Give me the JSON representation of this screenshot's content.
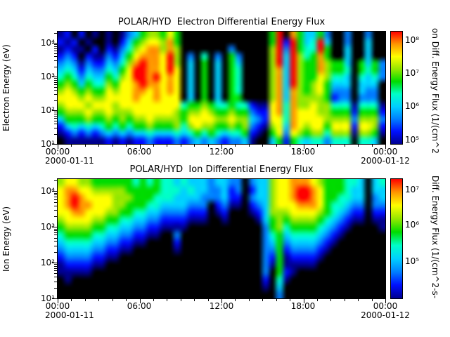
{
  "figure": {
    "panels": [
      {
        "title": "POLAR/HYD  Electron Differential Energy Flux",
        "ylabel": "Electron Energy (eV)",
        "yticks": [
          "10⁴",
          "10³",
          "10²",
          "10¹"
        ],
        "xticks": [
          "00:00",
          "06:00",
          "12:00",
          "18:00",
          "00:00"
        ],
        "date_left": "2000-01-11",
        "date_right": "2000-01-12",
        "cbticks": [
          "10⁸",
          "10⁷",
          "10⁶",
          "10⁵"
        ],
        "cblabel": "on Diff. Energy Flux (1/(cm^2"
      },
      {
        "title": "POLAR/HYD  Ion Differential Energy Flux",
        "ylabel": "Ion Energy (eV)",
        "yticks": [
          "10⁴",
          "10³",
          "10²",
          "10¹"
        ],
        "xticks": [
          "00:00",
          "06:00",
          "12:00",
          "18:00",
          "00:00"
        ],
        "date_left": "2000-01-11",
        "date_right": "2000-01-12",
        "cbticks": [
          "10⁷",
          "10⁶",
          "10⁵"
        ],
        "cblabel": "Diff. Energy Flux (1/(cm^2-s-"
      }
    ]
  },
  "colormap": [
    "#000000",
    "#000090",
    "#0010ff",
    "#0080ff",
    "#00d0ff",
    "#00ffc8",
    "#00dc00",
    "#96e800",
    "#ffff00",
    "#ff9600",
    "#ff0000"
  ],
  "chart_data": [
    {
      "type": "heatmap",
      "title": "POLAR/HYD  Electron Differential Energy Flux",
      "x": {
        "start": "2000-01-11 00:00",
        "end": "2000-01-12 00:00",
        "tick_labels": [
          "00:00",
          "06:00",
          "12:00",
          "18:00",
          "00:00"
        ],
        "bins": 48
      },
      "y": {
        "label": "Electron Energy (eV)",
        "scale": "log",
        "min_eV": 10,
        "max_eV": 10000,
        "tick_labels": [
          "10¹",
          "10²",
          "10³",
          "10⁴"
        ],
        "bins": 16
      },
      "z": {
        "colorbar_label_visible": "on Diff. Energy Flux (1/(cm^2",
        "colorbar_tick_labels": [
          "10⁸",
          "10⁷",
          "10⁶",
          "10⁵"
        ],
        "encoding": "hex digit per cell, 0=min(black) to a=max(red)"
      },
      "legend_position": "right-colorbar",
      "grid_rows_top_to_bottom": [
        "12020101013467768600000000000006a096446300300300",
        "21201001024678879600000000000006a2a645a400300400",
        "12110202135789979700000003000007a3a655a600400400",
        "2320211324689998a703050306300007a4a7569600400400",
        "343132243579a998a704060406400007a4a7669766406463",
        "45424335468aa998a80406040650000794a7669766506563",
        "56535446578aa9a8980406040650000794a7668755405453",
        "676465576889a998980406040650000794a7678644404440",
        "787676687889989898040604065000079497678633304330",
        "888787788889889888040604066000079497777623303330",
        "788878887888888888566765565521189597787755515551",
        "677787787778888887677876676632289598887766626662",
        "466676676767787777688887787743288598888777737773",
        "245454565656676667578776676732178498788688828872",
        "123232343434454445456565455621068387677577717761",
        "011111121212232223234343233410046265455355505540"
      ]
    },
    {
      "type": "heatmap",
      "title": "POLAR/HYD  Ion Differential Energy Flux",
      "x": {
        "start": "2000-01-11 00:00",
        "end": "2000-01-12 00:00",
        "tick_labels": [
          "00:00",
          "06:00",
          "12:00",
          "18:00",
          "00:00"
        ],
        "bins": 48
      },
      "y": {
        "label": "Ion Energy (eV)",
        "scale": "log",
        "min_eV": 10,
        "max_eV": 10000,
        "tick_labels": [
          "10¹",
          "10²",
          "10³",
          "10⁴"
        ],
        "bins": 16
      },
      "z": {
        "colorbar_label_visible": "Diff. Energy Flux (1/(cm^2-s-",
        "colorbar_tick_labels": [
          "10⁷",
          "10⁶",
          "10⁵"
        ],
        "encoding": "hex digit per cell, 0=min(black) to a=max(red)"
      },
      "legend_position": "right-colorbar",
      "grid_rows_top_to_bottom": [
        "788776666665656554544434433034478899987666554045",
        "89988777776666655545443342302447889aa98666544044",
        "89a98888777666555444433342203447889aa98665544034",
        "89a998887766655444433302311023478889998655433033",
        "889988877665544333322201200012477788887654322022",
        "788887766554433222211100100001467677776543211011",
        "677776655443322111100000000000367566665432100001",
        "566665544332211003000000000000356455554321000000",
        "455554433221100002000000000000346344443210000000",
        "344443322110000001000000000000336233332100000000",
        "233332211000000000000000000000326122221000000000",
        "122221100000000000000000000000316111110000000000",
        "111110000000000000000000000000306210000000000000",
        "010000000000000000000000000000205100000000000000",
        "000000000000000000000000000000104000000000000000",
        "000000000000000000000000000000003000000000000000"
      ]
    }
  ]
}
